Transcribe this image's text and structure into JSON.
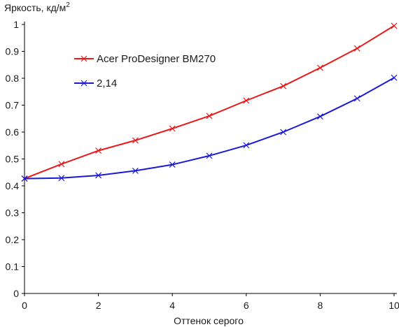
{
  "chart_data": {
    "type": "line",
    "ylabel": "Яркость, кд/м",
    "ylabel_sup": "2",
    "xlabel": "Оттенок серого",
    "xlim": [
      0,
      10
    ],
    "ylim": [
      0,
      1
    ],
    "x_ticks": [
      "0",
      "2",
      "4",
      "6",
      "8",
      "10"
    ],
    "y_ticks": [
      "0",
      "0.1",
      "0.2",
      "0.3",
      "0.4",
      "0.5",
      "0.6",
      "0.7",
      "0.8",
      "0.9",
      "1"
    ],
    "grid": false,
    "legend_position": "top-left",
    "x": [
      0,
      1,
      2,
      3,
      4,
      5,
      6,
      7,
      8,
      9,
      10
    ],
    "series": [
      {
        "name": "Acer ProDesigner BM270",
        "color": "#e8191b",
        "marker": "x-mark",
        "values": [
          0.427,
          0.481,
          0.531,
          0.569,
          0.613,
          0.66,
          0.717,
          0.771,
          0.839,
          0.911,
          0.995
        ]
      },
      {
        "name": "2,14",
        "color": "#1a1ad6",
        "marker": "x-mark",
        "values": [
          0.427,
          0.429,
          0.439,
          0.456,
          0.479,
          0.512,
          0.551,
          0.6,
          0.658,
          0.725,
          0.802
        ]
      }
    ]
  }
}
